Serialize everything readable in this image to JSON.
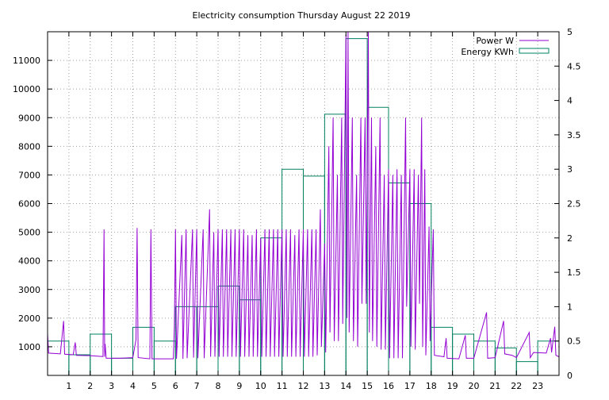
{
  "chart_data": {
    "type": "line",
    "title": "Electricity consumption Thursday August 22 2019",
    "xlabel": "",
    "ylabel": "",
    "y2label": "",
    "xlim": [
      0,
      24
    ],
    "ylim": [
      0,
      12000
    ],
    "y2lim": [
      0,
      5
    ],
    "grid": true,
    "legend_position": "top-right",
    "x_ticks": [
      1,
      2,
      3,
      4,
      5,
      6,
      7,
      8,
      9,
      10,
      11,
      12,
      13,
      14,
      15,
      16,
      17,
      18,
      19,
      20,
      21,
      22,
      23
    ],
    "y_ticks": [
      1000,
      2000,
      3000,
      4000,
      5000,
      6000,
      7000,
      8000,
      9000,
      10000,
      11000
    ],
    "y2_ticks": [
      "0",
      "0.5",
      "1",
      "1.5",
      "2",
      "2.5",
      "3",
      "3.5",
      "4",
      "4.5",
      "5"
    ],
    "series": [
      {
        "name": "Power W",
        "axis": "left",
        "style": "line",
        "color": "#9400d3",
        "points": [
          [
            0,
            1450
          ],
          [
            0.05,
            780
          ],
          [
            0.6,
            750
          ],
          [
            0.75,
            1900
          ],
          [
            0.8,
            740
          ],
          [
            1.2,
            720
          ],
          [
            1.3,
            1150
          ],
          [
            1.35,
            700
          ],
          [
            2.0,
            690
          ],
          [
            2.6,
            660
          ],
          [
            2.65,
            5100
          ],
          [
            2.68,
            650
          ],
          [
            2.7,
            1100
          ],
          [
            2.75,
            600
          ],
          [
            3.4,
            600
          ],
          [
            4.0,
            620
          ],
          [
            4.15,
            1250
          ],
          [
            4.2,
            5150
          ],
          [
            4.25,
            620
          ],
          [
            4.8,
            580
          ],
          [
            4.85,
            5100
          ],
          [
            4.9,
            580
          ],
          [
            5.9,
            580
          ],
          [
            5.95,
            1700
          ],
          [
            6.0,
            5100
          ],
          [
            6.05,
            580
          ],
          [
            6.3,
            4900
          ],
          [
            6.35,
            580
          ],
          [
            6.5,
            5100
          ],
          [
            6.55,
            600
          ],
          [
            6.8,
            5100
          ],
          [
            6.85,
            620
          ],
          [
            7.0,
            5100
          ],
          [
            7.05,
            600
          ],
          [
            7.3,
            5100
          ],
          [
            7.35,
            600
          ],
          [
            7.6,
            5800
          ],
          [
            7.65,
            650
          ],
          [
            7.8,
            5000
          ],
          [
            7.85,
            650
          ],
          [
            8.0,
            5100
          ],
          [
            8.05,
            650
          ],
          [
            8.2,
            5100
          ],
          [
            8.25,
            650
          ],
          [
            8.4,
            5100
          ],
          [
            8.45,
            650
          ],
          [
            8.6,
            5100
          ],
          [
            8.65,
            650
          ],
          [
            8.8,
            5100
          ],
          [
            8.85,
            650
          ],
          [
            9.0,
            5100
          ],
          [
            9.05,
            650
          ],
          [
            9.2,
            5100
          ],
          [
            9.25,
            650
          ],
          [
            9.4,
            4900
          ],
          [
            9.45,
            650
          ],
          [
            9.6,
            4900
          ],
          [
            9.65,
            650
          ],
          [
            9.8,
            5100
          ],
          [
            9.85,
            650
          ],
          [
            10.0,
            4800
          ],
          [
            10.05,
            650
          ],
          [
            10.2,
            5100
          ],
          [
            10.25,
            650
          ],
          [
            10.4,
            5100
          ],
          [
            10.45,
            650
          ],
          [
            10.6,
            5100
          ],
          [
            10.65,
            650
          ],
          [
            10.8,
            5100
          ],
          [
            10.85,
            650
          ],
          [
            11.0,
            5100
          ],
          [
            11.05,
            650
          ],
          [
            11.2,
            5100
          ],
          [
            11.25,
            650
          ],
          [
            11.4,
            5100
          ],
          [
            11.45,
            650
          ],
          [
            11.6,
            4900
          ],
          [
            11.65,
            650
          ],
          [
            11.8,
            5100
          ],
          [
            11.85,
            650
          ],
          [
            12.0,
            5100
          ],
          [
            12.05,
            650
          ],
          [
            12.2,
            5100
          ],
          [
            12.25,
            650
          ],
          [
            12.4,
            5100
          ],
          [
            12.45,
            650
          ],
          [
            12.6,
            5100
          ],
          [
            12.65,
            700
          ],
          [
            12.8,
            5800
          ],
          [
            12.85,
            1000
          ],
          [
            13.0,
            4600
          ],
          [
            13.05,
            800
          ],
          [
            13.2,
            8000
          ],
          [
            13.25,
            1500
          ],
          [
            13.4,
            9000
          ],
          [
            13.45,
            1200
          ],
          [
            13.6,
            7000
          ],
          [
            13.65,
            1200
          ],
          [
            13.8,
            9000
          ],
          [
            13.85,
            1800
          ],
          [
            14.0,
            11900
          ],
          [
            14.05,
            2000
          ],
          [
            14.1,
            12000
          ],
          [
            14.15,
            1500
          ],
          [
            14.3,
            9000
          ],
          [
            14.35,
            1200
          ],
          [
            14.5,
            7000
          ],
          [
            14.55,
            1000
          ],
          [
            14.7,
            9000
          ],
          [
            14.75,
            2500
          ],
          [
            14.9,
            9000
          ],
          [
            14.95,
            2500
          ],
          [
            15.05,
            12000
          ],
          [
            15.1,
            1500
          ],
          [
            15.2,
            9000
          ],
          [
            15.25,
            1200
          ],
          [
            15.4,
            8000
          ],
          [
            15.45,
            1000
          ],
          [
            15.6,
            9000
          ],
          [
            15.65,
            900
          ],
          [
            15.8,
            7000
          ],
          [
            15.85,
            900
          ],
          [
            16.0,
            7200
          ],
          [
            16.05,
            600
          ],
          [
            16.2,
            7000
          ],
          [
            16.25,
            600
          ],
          [
            16.4,
            7200
          ],
          [
            16.45,
            600
          ],
          [
            16.6,
            7000
          ],
          [
            16.65,
            600
          ],
          [
            16.8,
            9000
          ],
          [
            16.85,
            2400
          ],
          [
            17.0,
            7200
          ],
          [
            17.05,
            1000
          ],
          [
            17.2,
            7200
          ],
          [
            17.25,
            900
          ],
          [
            17.4,
            7000
          ],
          [
            17.45,
            2500
          ],
          [
            17.55,
            9000
          ],
          [
            17.6,
            1000
          ],
          [
            17.7,
            7200
          ],
          [
            17.75,
            700
          ],
          [
            17.9,
            5200
          ],
          [
            17.95,
            1200
          ],
          [
            18.1,
            5100
          ],
          [
            18.15,
            700
          ],
          [
            18.6,
            650
          ],
          [
            18.7,
            1300
          ],
          [
            18.75,
            600
          ],
          [
            19.3,
            580
          ],
          [
            19.6,
            1400
          ],
          [
            19.65,
            600
          ],
          [
            20.0,
            600
          ],
          [
            20.6,
            2200
          ],
          [
            20.65,
            600
          ],
          [
            21.0,
            620
          ],
          [
            21.4,
            1900
          ],
          [
            21.45,
            750
          ],
          [
            21.8,
            700
          ],
          [
            22.0,
            620
          ],
          [
            22.6,
            1500
          ],
          [
            22.65,
            620
          ],
          [
            22.8,
            800
          ],
          [
            23.4,
            780
          ],
          [
            23.6,
            1300
          ],
          [
            23.65,
            800
          ],
          [
            23.8,
            1700
          ],
          [
            23.85,
            700
          ],
          [
            24.0,
            650
          ]
        ]
      },
      {
        "name": "Energy KWh",
        "axis": "right",
        "style": "steps",
        "color": "#008060",
        "values": [
          0.5,
          0.3,
          0.6,
          0.25,
          0.7,
          0.5,
          1.0,
          1.0,
          1.3,
          1.1,
          2.0,
          3.0,
          2.9,
          3.8,
          4.9,
          3.9,
          2.8,
          2.5,
          0.7,
          0.6,
          0.5,
          0.4,
          0.2,
          0.5
        ]
      }
    ]
  }
}
